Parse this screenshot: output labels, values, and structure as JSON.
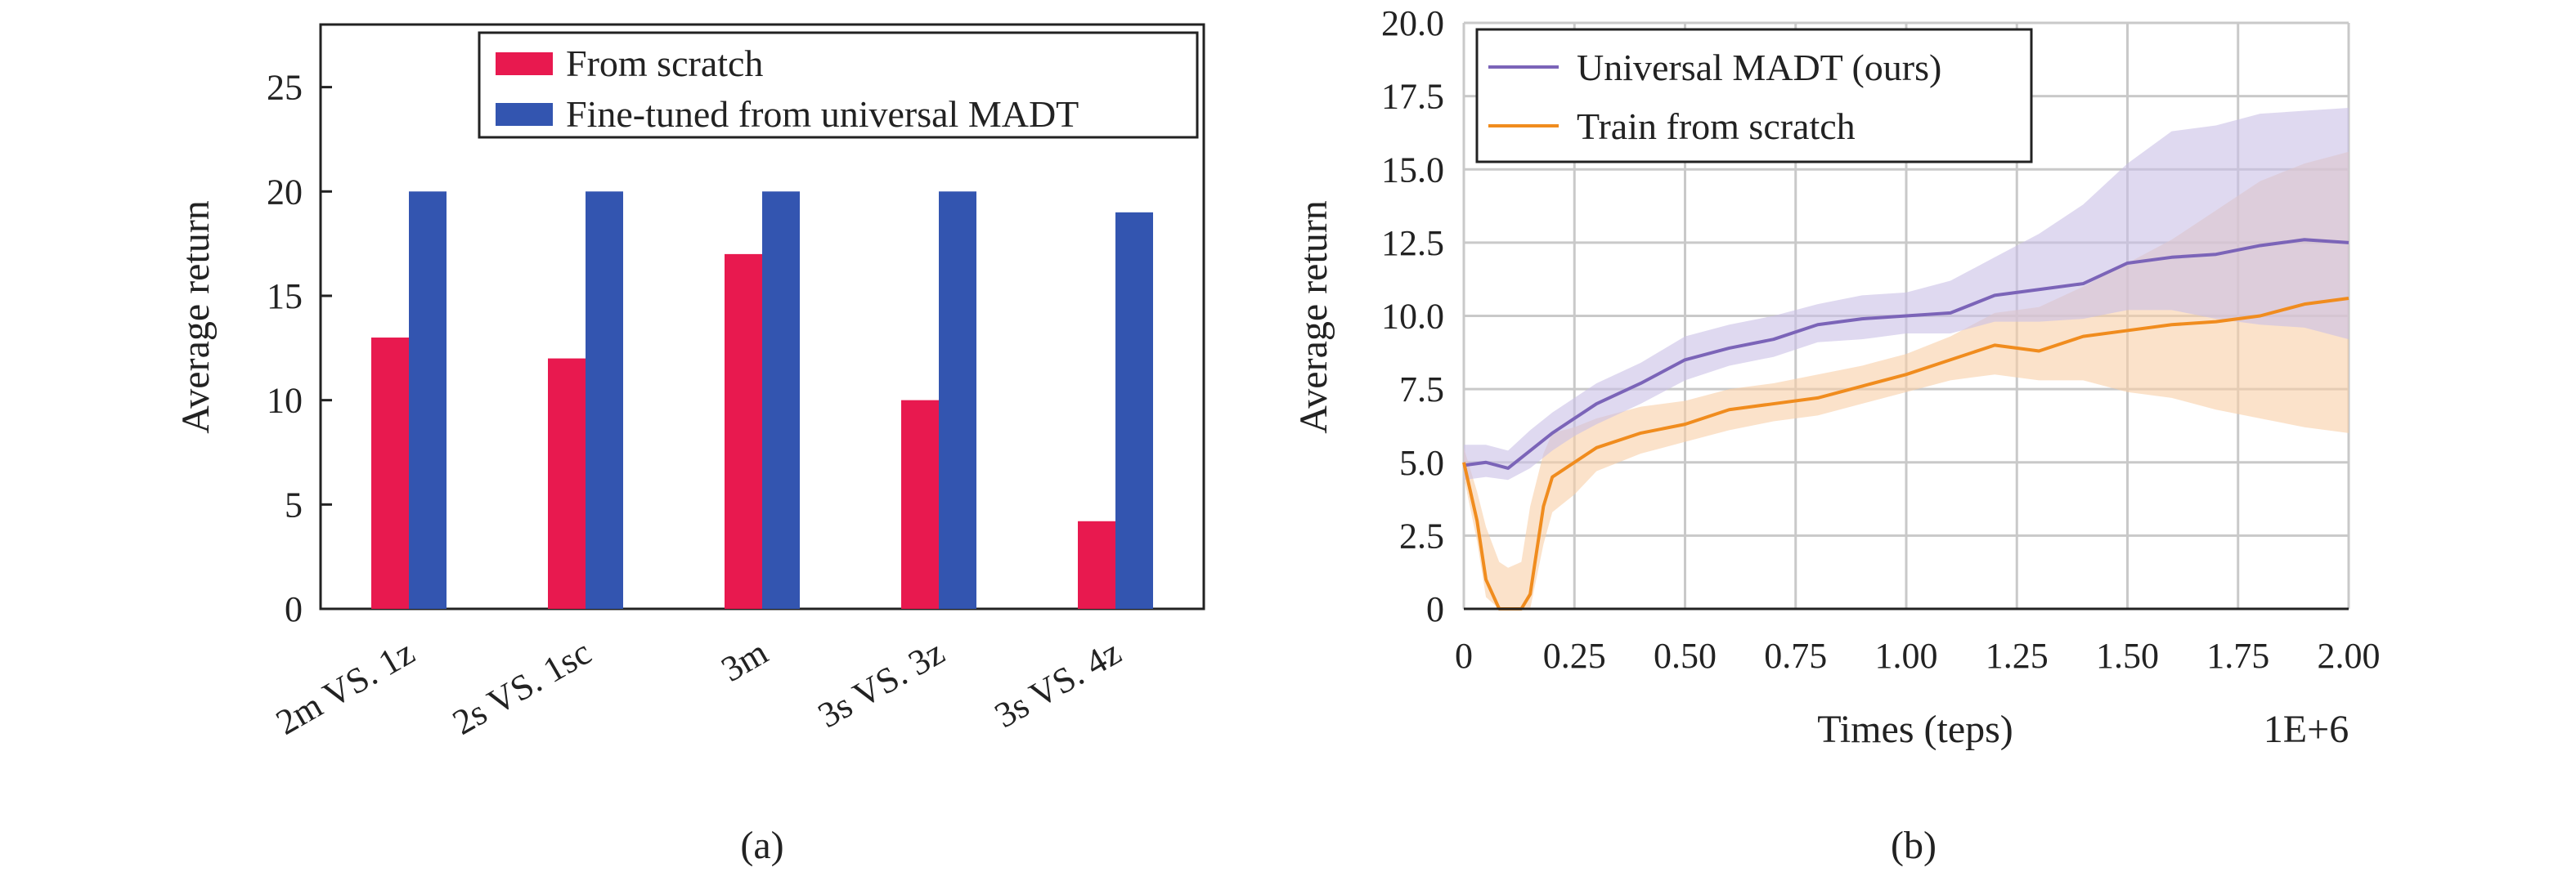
{
  "chart_data": [
    {
      "type": "bar",
      "panel_label": "(a)",
      "ylabel": "Average return",
      "ylim": [
        0,
        28
      ],
      "yticks": [
        "0",
        "5",
        "10",
        "15",
        "20",
        "25"
      ],
      "categories": [
        "2m VS. 1z",
        "2s VS. 1sc",
        "3m",
        "3s VS. 3z",
        "3s VS. 4z"
      ],
      "series": [
        {
          "name": "From scratch",
          "color": "#e8194f",
          "values": [
            13,
            12,
            17,
            10,
            4.2
          ]
        },
        {
          "name": "Fine-tuned from universal MADT",
          "color": "#3355b0",
          "values": [
            20,
            20,
            20,
            20,
            19
          ]
        }
      ],
      "legend_position": "top-right",
      "grid": false
    },
    {
      "type": "line",
      "panel_label": "(b)",
      "xlabel": "Times (teps)",
      "x_multiplier": "1E+6",
      "ylabel": "Average return",
      "xlim": [
        0,
        2.0
      ],
      "ylim": [
        0,
        20.0
      ],
      "xticks": [
        "0",
        "0.25",
        "0.50",
        "0.75",
        "1.00",
        "1.25",
        "1.50",
        "1.75",
        "2.00"
      ],
      "yticks": [
        "0",
        "2.5",
        "5.0",
        "7.5",
        "10.0",
        "12.5",
        "15.0",
        "17.5",
        "20.0"
      ],
      "grid": true,
      "legend_position": "top-left",
      "series": [
        {
          "name": "Universal MADT (ours)",
          "color": "#7b64b8",
          "band_color": "#c9bfe6",
          "x": [
            0,
            0.05,
            0.1,
            0.15,
            0.2,
            0.25,
            0.3,
            0.4,
            0.5,
            0.6,
            0.7,
            0.8,
            0.9,
            1.0,
            1.1,
            1.2,
            1.3,
            1.4,
            1.5,
            1.6,
            1.7,
            1.8,
            1.9,
            2.0
          ],
          "y": [
            4.9,
            5.0,
            4.8,
            5.4,
            6.0,
            6.5,
            7.0,
            7.7,
            8.5,
            8.9,
            9.2,
            9.7,
            9.9,
            10.0,
            10.1,
            10.7,
            10.9,
            11.1,
            11.8,
            12.0,
            12.1,
            12.4,
            12.6,
            12.5
          ],
          "lower": [
            4.4,
            4.5,
            4.4,
            4.8,
            5.4,
            5.9,
            6.3,
            7.0,
            7.8,
            8.3,
            8.6,
            9.1,
            9.2,
            9.4,
            9.4,
            9.8,
            9.8,
            9.9,
            10.2,
            10.2,
            9.9,
            9.7,
            9.6,
            9.2
          ],
          "upper": [
            5.6,
            5.6,
            5.4,
            6.1,
            6.7,
            7.2,
            7.7,
            8.4,
            9.3,
            9.7,
            10.0,
            10.4,
            10.7,
            10.8,
            11.2,
            12.0,
            12.8,
            13.8,
            15.2,
            16.3,
            16.5,
            16.9,
            17.0,
            17.1
          ]
        },
        {
          "name": "Train from scratch",
          "color": "#f08c1e",
          "band_color": "#f8cfa6",
          "x": [
            0,
            0.03,
            0.05,
            0.08,
            0.1,
            0.13,
            0.15,
            0.18,
            0.2,
            0.25,
            0.3,
            0.4,
            0.5,
            0.6,
            0.7,
            0.8,
            0.9,
            1.0,
            1.1,
            1.2,
            1.3,
            1.4,
            1.5,
            1.6,
            1.7,
            1.8,
            1.9,
            2.0
          ],
          "y": [
            5.0,
            3.0,
            1.0,
            0.0,
            0.0,
            0.0,
            0.5,
            3.5,
            4.5,
            5.0,
            5.5,
            6.0,
            6.3,
            6.8,
            7.0,
            7.2,
            7.6,
            8.0,
            8.5,
            9.0,
            8.8,
            9.3,
            9.5,
            9.7,
            9.8,
            10.0,
            10.4,
            10.6
          ],
          "lower": [
            4.5,
            2.3,
            0.4,
            0.0,
            0.0,
            0.0,
            0.0,
            2.2,
            3.3,
            3.9,
            4.7,
            5.3,
            5.7,
            6.1,
            6.4,
            6.6,
            7.0,
            7.4,
            7.8,
            8.0,
            7.8,
            7.8,
            7.4,
            7.2,
            6.8,
            6.5,
            6.2,
            6.0
          ],
          "upper": [
            5.5,
            4.0,
            2.8,
            1.6,
            1.4,
            1.6,
            3.5,
            5.3,
            6.0,
            6.2,
            6.5,
            6.9,
            7.1,
            7.5,
            7.7,
            8.0,
            8.3,
            8.7,
            9.3,
            10.1,
            10.3,
            11.0,
            11.8,
            12.6,
            13.6,
            14.6,
            15.2,
            15.6
          ]
        }
      ]
    }
  ]
}
